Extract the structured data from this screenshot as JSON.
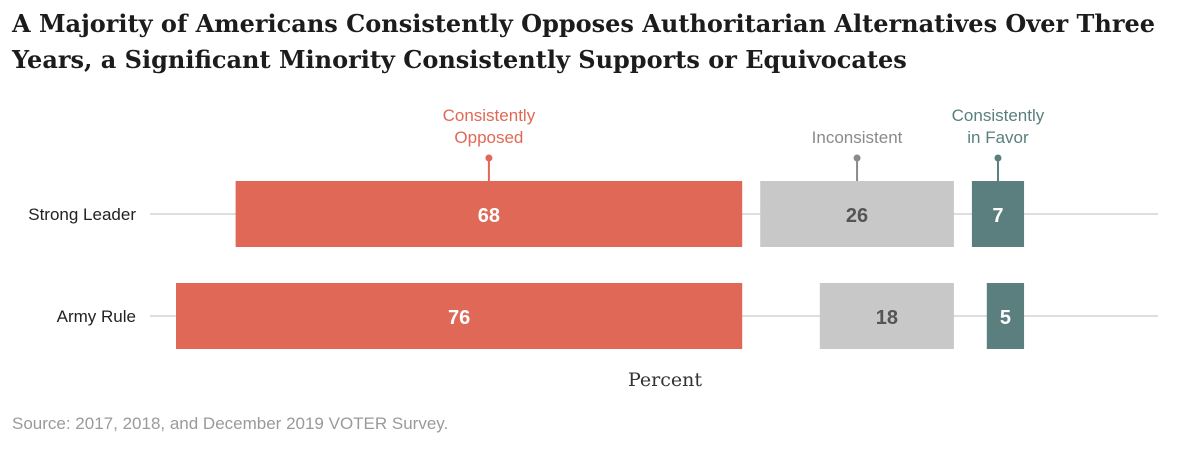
{
  "title": "A Majority of Americans Consistently Opposes Authoritarian Alternatives Over Three Years, a Significant Minority Consistently Supports or Equivocates",
  "source": "Source: 2017, 2018, and December 2019 VOTER Survey.",
  "chart_data": {
    "type": "bar",
    "orientation": "horizontal",
    "layout": "segmented panels with gaps",
    "categories": [
      "Strong Leader",
      "Army Rule"
    ],
    "series": [
      {
        "name": "Consistently Opposed",
        "values": [
          68,
          76
        ],
        "color": "#e06856"
      },
      {
        "name": "Inconsistent",
        "values": [
          26,
          18
        ],
        "color": "#c8c8c8"
      },
      {
        "name": "Consistently in Favor",
        "values": [
          7,
          5
        ],
        "color": "#5a7f7e"
      }
    ],
    "series_labels": [
      [
        "Consistently",
        "Opposed"
      ],
      [
        "Inconsistent"
      ],
      [
        "Consistently",
        "in Favor"
      ]
    ],
    "xlabel": "Percent",
    "ylabel": "",
    "grid": true,
    "legend": "labels above each panel"
  }
}
